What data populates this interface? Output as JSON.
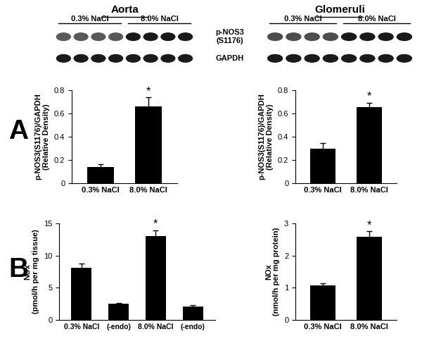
{
  "panel_labels": [
    "A",
    "B"
  ],
  "columns": [
    "Aorta",
    "Glomeruli"
  ],
  "blot": {
    "groups": [
      "0.3% NaCl",
      "8.0% NaCl"
    ],
    "rows": [
      "p-NOS3\n(S1176)",
      "GAPDH"
    ]
  },
  "chart_data": [
    {
      "type": "bar",
      "y_label": "p-NOS3(S1176)/GAPDH\n(Relative Density)",
      "categories": [
        "0.3% NaCl",
        "8.0% NaCl"
      ],
      "values": [
        0.14,
        0.66
      ],
      "errors": [
        0.025,
        0.075
      ],
      "color": "#000000",
      "ylim": [
        0,
        0.8
      ],
      "yticks": [
        0,
        0.2,
        0.4,
        0.6,
        0.8
      ],
      "annotations": [
        {
          "text": "*",
          "index": 1
        }
      ]
    },
    {
      "type": "bar",
      "y_label": "p-NOS3(S1176)/GAPDH\n(Relative Density)",
      "categories": [
        "0.3% NaCl",
        "8.0% NaCl"
      ],
      "values": [
        0.3,
        0.655
      ],
      "errors": [
        0.045,
        0.035
      ],
      "color": "#000000",
      "ylim": [
        0,
        0.8
      ],
      "yticks": [
        0,
        0.2,
        0.4,
        0.6,
        0.8
      ],
      "annotations": [
        {
          "text": "*",
          "index": 1
        }
      ]
    },
    {
      "type": "bar",
      "y_label": "NOx\n(pmol/h per mg tissue)",
      "categories": [
        "0.3% NaCl",
        "(-endo)",
        "8.0% NaCl",
        "(-endo)"
      ],
      "values": [
        8.1,
        2.5,
        13.0,
        2.1
      ],
      "errors": [
        0.7,
        0.15,
        0.9,
        0.2
      ],
      "color": "#000000",
      "ylim": [
        0,
        15
      ],
      "yticks": [
        0,
        5,
        10,
        15
      ],
      "annotations": [
        {
          "text": "*",
          "index": 2
        }
      ]
    },
    {
      "type": "bar",
      "y_label": "NOx\n(nmol/h per mg protein)",
      "categories": [
        "0.3% NaCl",
        "8.0% NaCl"
      ],
      "values": [
        1.07,
        2.58
      ],
      "errors": [
        0.06,
        0.17
      ],
      "color": "#000000",
      "ylim": [
        0,
        3
      ],
      "yticks": [
        0,
        1,
        2,
        3
      ],
      "annotations": [
        {
          "text": "*",
          "index": 1
        }
      ]
    }
  ]
}
